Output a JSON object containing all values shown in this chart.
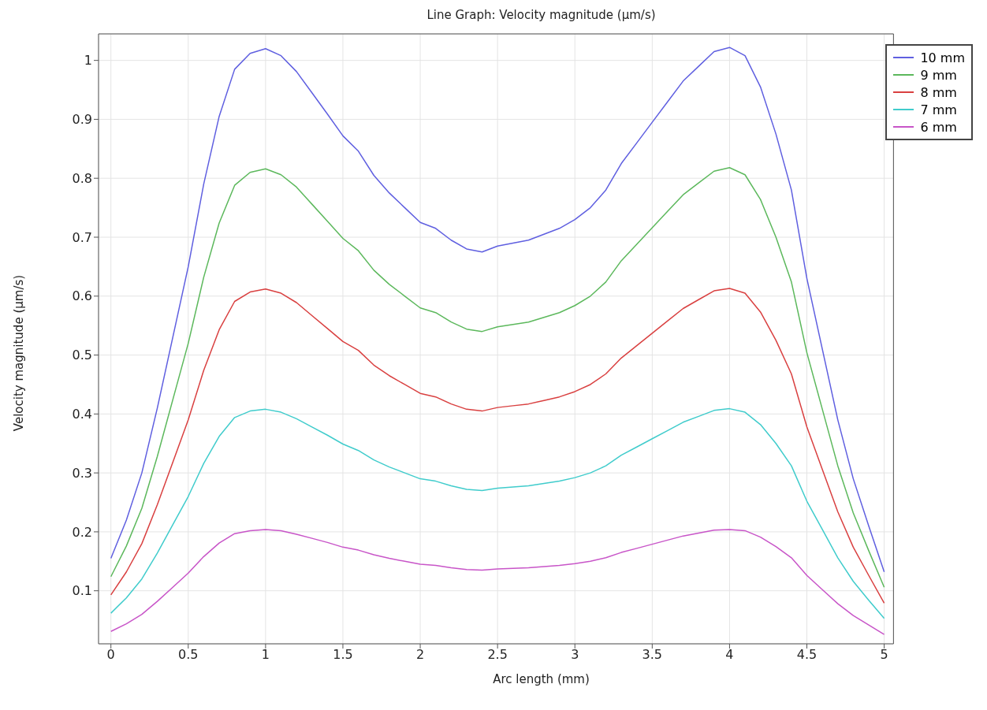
{
  "chart_data": {
    "type": "line",
    "title": "Line Graph: Velocity magnitude (µm/s)",
    "xlabel": "Arc length (mm)",
    "ylabel": "Velocity magnitude (µm/s)",
    "x": [
      0,
      0.1,
      0.2,
      0.3,
      0.4,
      0.5,
      0.6,
      0.7,
      0.8,
      0.9,
      1,
      1.1,
      1.2,
      1.3,
      1.4,
      1.5,
      1.6,
      1.7,
      1.8,
      1.9,
      2,
      2.1,
      2.2,
      2.3,
      2.4,
      2.5,
      2.6,
      2.7,
      2.8,
      2.9,
      3,
      3.1,
      3.2,
      3.3,
      3.4,
      3.5,
      3.6,
      3.7,
      3.8,
      3.9,
      4,
      4.1,
      4.2,
      4.3,
      4.4,
      4.5,
      4.6,
      4.7,
      4.8,
      4.9,
      5
    ],
    "series": [
      {
        "name": "10 mm",
        "color": "#5f5fe0",
        "values": [
          0.155,
          0.22,
          0.3,
          0.41,
          0.53,
          0.65,
          0.79,
          0.905,
          0.985,
          1.012,
          1.02,
          1.008,
          0.981,
          0.945,
          0.909,
          0.872,
          0.846,
          0.805,
          0.775,
          0.75,
          0.725,
          0.715,
          0.695,
          0.68,
          0.675,
          0.685,
          0.69,
          0.695,
          0.705,
          0.715,
          0.73,
          0.75,
          0.78,
          0.825,
          0.86,
          0.895,
          0.93,
          0.965,
          0.99,
          1.015,
          1.022,
          1.008,
          0.955,
          0.875,
          0.78,
          0.63,
          0.51,
          0.39,
          0.29,
          0.21,
          0.132
        ]
      },
      {
        "name": "9 mm",
        "color": "#5cb85c",
        "values": [
          0.124,
          0.176,
          0.24,
          0.328,
          0.424,
          0.52,
          0.632,
          0.724,
          0.788,
          0.81,
          0.816,
          0.806,
          0.785,
          0.756,
          0.727,
          0.698,
          0.677,
          0.644,
          0.62,
          0.6,
          0.58,
          0.572,
          0.556,
          0.544,
          0.54,
          0.548,
          0.552,
          0.556,
          0.564,
          0.572,
          0.584,
          0.6,
          0.624,
          0.66,
          0.688,
          0.716,
          0.744,
          0.772,
          0.792,
          0.812,
          0.818,
          0.806,
          0.764,
          0.7,
          0.624,
          0.504,
          0.408,
          0.312,
          0.232,
          0.168,
          0.106
        ]
      },
      {
        "name": "8 mm",
        "color": "#d94040",
        "values": [
          0.093,
          0.132,
          0.18,
          0.246,
          0.318,
          0.39,
          0.474,
          0.543,
          0.591,
          0.607,
          0.612,
          0.605,
          0.589,
          0.567,
          0.545,
          0.523,
          0.508,
          0.483,
          0.465,
          0.45,
          0.435,
          0.429,
          0.417,
          0.408,
          0.405,
          0.411,
          0.414,
          0.417,
          0.423,
          0.429,
          0.438,
          0.45,
          0.468,
          0.495,
          0.516,
          0.537,
          0.558,
          0.579,
          0.594,
          0.609,
          0.613,
          0.605,
          0.573,
          0.525,
          0.468,
          0.378,
          0.306,
          0.234,
          0.174,
          0.126,
          0.079
        ]
      },
      {
        "name": "7 mm",
        "color": "#40cccc",
        "values": [
          0.062,
          0.088,
          0.12,
          0.164,
          0.212,
          0.26,
          0.316,
          0.362,
          0.394,
          0.405,
          0.408,
          0.403,
          0.392,
          0.378,
          0.364,
          0.349,
          0.338,
          0.322,
          0.31,
          0.3,
          0.29,
          0.286,
          0.278,
          0.272,
          0.27,
          0.274,
          0.276,
          0.278,
          0.282,
          0.286,
          0.292,
          0.3,
          0.312,
          0.33,
          0.344,
          0.358,
          0.372,
          0.386,
          0.396,
          0.406,
          0.409,
          0.403,
          0.382,
          0.35,
          0.312,
          0.252,
          0.204,
          0.156,
          0.116,
          0.084,
          0.053
        ]
      },
      {
        "name": "6 mm",
        "color": "#c855c8",
        "values": [
          0.031,
          0.044,
          0.06,
          0.082,
          0.106,
          0.13,
          0.158,
          0.181,
          0.197,
          0.202,
          0.204,
          0.202,
          0.196,
          0.189,
          0.182,
          0.174,
          0.169,
          0.161,
          0.155,
          0.15,
          0.145,
          0.143,
          0.139,
          0.136,
          0.135,
          0.137,
          0.138,
          0.139,
          0.141,
          0.143,
          0.146,
          0.15,
          0.156,
          0.165,
          0.172,
          0.179,
          0.186,
          0.193,
          0.198,
          0.203,
          0.204,
          0.202,
          0.191,
          0.175,
          0.156,
          0.126,
          0.102,
          0.078,
          0.058,
          0.042,
          0.026
        ]
      }
    ],
    "xlim": [
      -0.08,
      5.06
    ],
    "xticks": [
      0,
      0.5,
      1,
      1.5,
      2,
      2.5,
      3,
      3.5,
      4,
      4.5,
      5
    ],
    "ylim": [
      0.01,
      1.045
    ],
    "yticks": [
      0.1,
      0.2,
      0.3,
      0.4,
      0.5,
      0.6,
      0.7,
      0.8,
      0.9,
      1
    ],
    "grid": true,
    "legend": "top right",
    "marker": "none",
    "line_style": "solid"
  }
}
